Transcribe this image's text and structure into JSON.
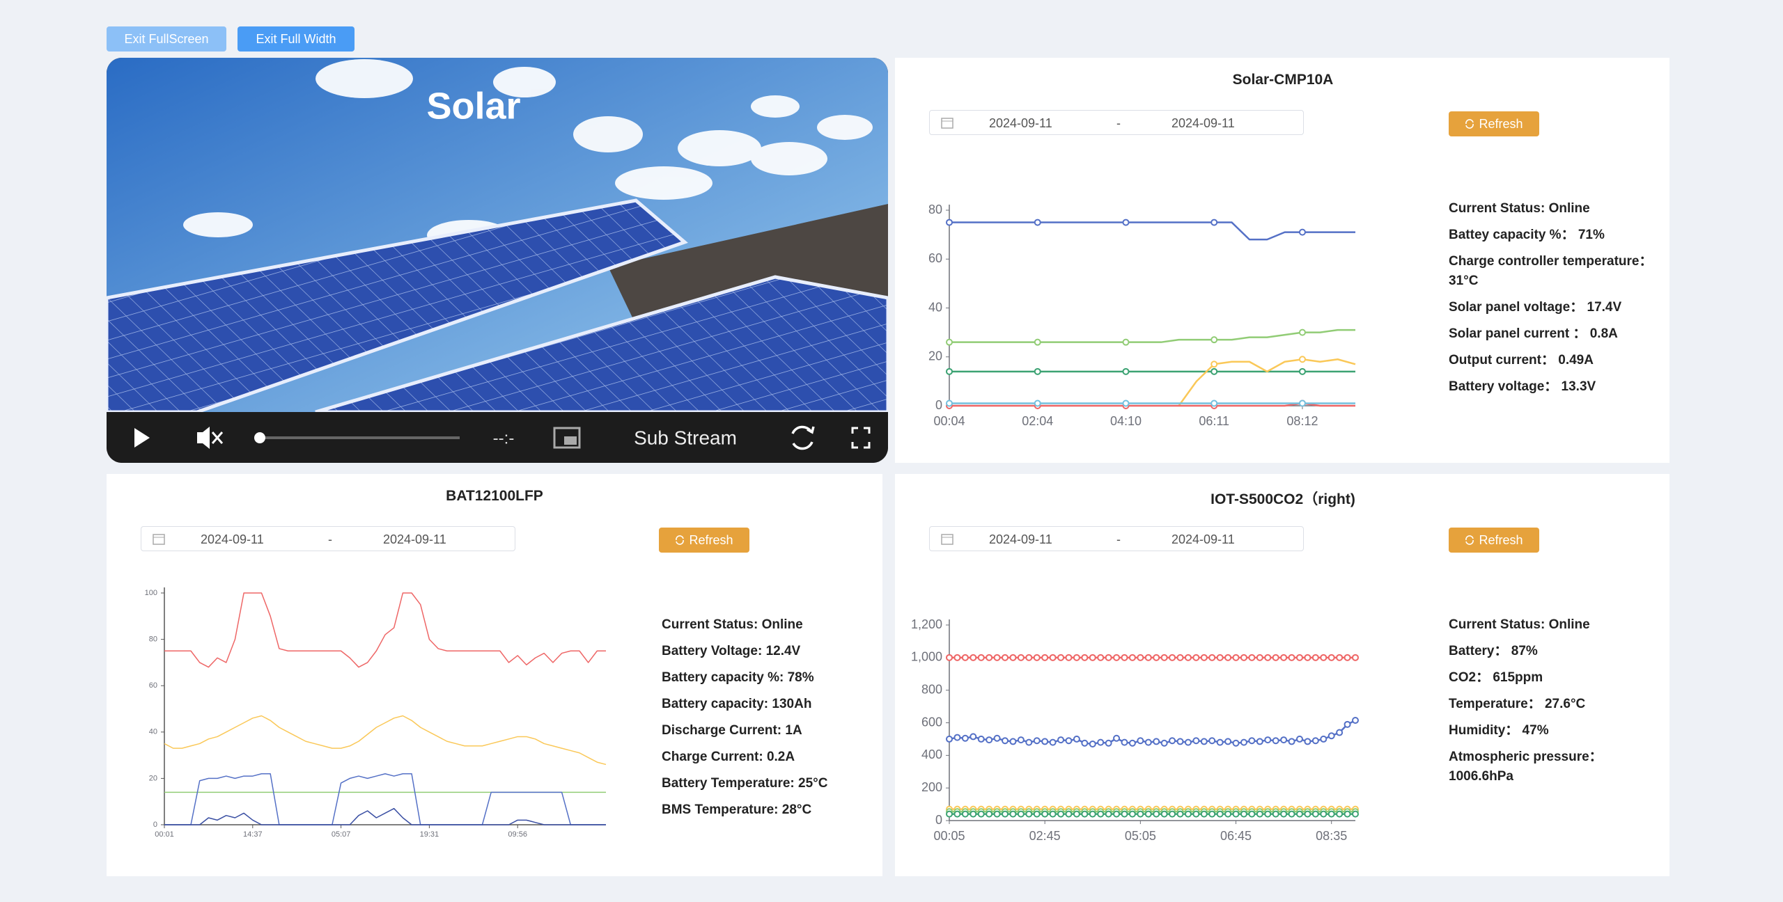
{
  "buttons": [
    "Exit FullScreen",
    "Exit Full Width"
  ],
  "video": {
    "title": "Solar",
    "time": "--:-",
    "stream": "Sub Stream"
  },
  "panels": [
    {
      "title": "Solar-CMP10A",
      "date": {
        "start": "2024-09-11",
        "separator": "-",
        "end": "2024-09-11"
      },
      "refresh": "Refresh",
      "info": [
        "Current Status: Online",
        "Battey capacity %： 71%",
        "Charge controller temperature：31°C",
        "Solar panel voltage： 17.4V",
        "Solar panel current ： 0.8A",
        "Output current： 0.49A",
        "Battery voltage： 13.3V"
      ],
      "chart": {
        "type": "line",
        "categories": [
          "00:04",
          null,
          null,
          null,
          null,
          "02:04",
          null,
          null,
          null,
          null,
          "04:10",
          null,
          null,
          null,
          null,
          "06:11",
          null,
          null,
          null,
          null,
          "08:12",
          null,
          null,
          null
        ],
        "ylim": [
          0,
          80
        ],
        "yticks": [
          0,
          20,
          40,
          60,
          80
        ],
        "symbol_every": 5,
        "series": [
          {
            "color": "#5470c6",
            "values": [
              75,
              75,
              75,
              75,
              75,
              75,
              75,
              75,
              75,
              75,
              75,
              75,
              75,
              75,
              75,
              75,
              75,
              68,
              68,
              71,
              71,
              71,
              71,
              71
            ]
          },
          {
            "color": "#91cc75",
            "values": [
              26,
              26,
              26,
              26,
              26,
              26,
              26,
              26,
              26,
              26,
              26,
              26,
              26,
              27,
              27,
              27,
              27,
              28,
              28,
              29,
              30,
              30,
              31,
              31
            ]
          },
          {
            "color": "#3ba272",
            "values": [
              14,
              14,
              14,
              14,
              14,
              14,
              14,
              14,
              14,
              14,
              14,
              14,
              14,
              14,
              14,
              14,
              14,
              14,
              14,
              14,
              14,
              14,
              14,
              14
            ]
          },
          {
            "color": "#fac858",
            "values": [
              null,
              null,
              null,
              null,
              null,
              null,
              null,
              null,
              null,
              null,
              null,
              null,
              null,
              0,
              10,
              17,
              18,
              18,
              14,
              18,
              19,
              18,
              19,
              17
            ]
          },
          {
            "color": "#ee6666",
            "values": [
              0,
              0,
              0,
              0,
              0,
              0,
              0,
              0,
              0,
              0,
              0,
              0,
              0,
              0,
              0,
              0,
              0,
              0,
              0,
              0,
              1,
              0,
              0,
              0
            ]
          },
          {
            "color": "#73c0de",
            "values": [
              1,
              1,
              1,
              1,
              1,
              1,
              1,
              1,
              1,
              1,
              1,
              1,
              1,
              1,
              1,
              1,
              1,
              1,
              1,
              1,
              1,
              1,
              1,
              1
            ]
          }
        ]
      }
    },
    {
      "title": "BAT12100LFP",
      "date": {
        "start": "2024-09-11",
        "separator": "-",
        "end": "2024-09-11"
      },
      "refresh": "Refresh",
      "info": [
        "Current Status: Online",
        "Battery Voltage: 12.4V",
        "Battery capacity %: 78%",
        "Battery capacity: 130Ah",
        "Discharge Current: 1A",
        "Charge Current: 0.2A",
        "Battery Temperature: 25°C",
        "BMS Temperature: 28°C"
      ],
      "chart": {
        "type": "line",
        "categories": [
          "00:01",
          null,
          null,
          null,
          null,
          null,
          null,
          null,
          null,
          null,
          "14:37",
          null,
          null,
          null,
          null,
          null,
          null,
          null,
          null,
          null,
          "05:07",
          null,
          null,
          null,
          null,
          null,
          null,
          null,
          null,
          null,
          "19:31",
          null,
          null,
          null,
          null,
          null,
          null,
          null,
          null,
          null,
          "09:56",
          null,
          null,
          null,
          null,
          null,
          null,
          null,
          null,
          null,
          null
        ],
        "ylim": [
          0,
          100
        ],
        "yticks": [
          0,
          20,
          40,
          60,
          80,
          100
        ],
        "series": [
          {
            "color": "#ee6666",
            "values": [
              75,
              75,
              75,
              75,
              70,
              68,
              72,
              70,
              80,
              100,
              100,
              100,
              90,
              76,
              75,
              75,
              75,
              75,
              75,
              75,
              75,
              72,
              68,
              70,
              75,
              82,
              85,
              100,
              100,
              95,
              80,
              76,
              75,
              75,
              75,
              75,
              75,
              75,
              75,
              70,
              73,
              69,
              72,
              74,
              70,
              74,
              75,
              75,
              70,
              75,
              75
            ]
          },
          {
            "color": "#fac858",
            "values": [
              35,
              33,
              33,
              34,
              35,
              37,
              38,
              40,
              42,
              44,
              46,
              47,
              45,
              42,
              40,
              38,
              36,
              35,
              34,
              33,
              33,
              34,
              36,
              39,
              42,
              44,
              46,
              47,
              45,
              42,
              40,
              38,
              36,
              35,
              34,
              34,
              34,
              35,
              36,
              37,
              38,
              38,
              37,
              35,
              34,
              33,
              32,
              31,
              29,
              27,
              26
            ]
          },
          {
            "color": "#91cc75",
            "values": [
              14,
              14,
              14,
              14,
              14,
              14,
              14,
              14,
              14,
              14,
              14,
              14,
              14,
              14,
              14,
              14,
              14,
              14,
              14,
              14,
              14,
              14,
              14,
              14,
              14,
              14,
              14,
              14,
              14,
              14,
              14,
              14,
              14,
              14,
              14,
              14,
              14,
              14,
              14,
              14,
              14,
              14,
              14,
              14,
              14,
              14,
              14,
              14,
              14,
              14,
              14
            ]
          },
          {
            "color": "#5470c6",
            "values": [
              0,
              0,
              0,
              0,
              19,
              20,
              20,
              21,
              20,
              21,
              21,
              22,
              22,
              0,
              0,
              0,
              0,
              0,
              0,
              0,
              18,
              20,
              21,
              20,
              21,
              22,
              21,
              22,
              22,
              0,
              0,
              0,
              0,
              0,
              0,
              0,
              0,
              14,
              14,
              14,
              14,
              14,
              14,
              14,
              14,
              14,
              0,
              0,
              0,
              0,
              0
            ]
          },
          {
            "color": "#3a4fa3",
            "values": [
              0,
              0,
              0,
              0,
              0,
              3,
              2,
              4,
              3,
              5,
              2,
              0,
              0,
              0,
              0,
              0,
              0,
              0,
              0,
              0,
              0,
              0,
              4,
              6,
              3,
              5,
              7,
              3,
              0,
              0,
              0,
              0,
              0,
              0,
              0,
              0,
              0,
              0,
              0,
              0,
              2,
              2,
              1,
              0,
              0,
              0,
              0,
              0,
              0,
              0,
              0
            ]
          }
        ]
      }
    },
    {
      "title": "IOT-S500CO2（right)",
      "date": {
        "start": "2024-09-11",
        "separator": "-",
        "end": "2024-09-11"
      },
      "refresh": "Refresh",
      "info": [
        "Current Status: Online",
        "Battery： 87%",
        "CO2： 615ppm",
        "Temperature： 27.6°C",
        "Humidity： 47%",
        "Atmospheric pressure：1006.6hPa"
      ],
      "chart": {
        "type": "line",
        "categories": [
          "00:05",
          null,
          null,
          null,
          null,
          null,
          null,
          null,
          null,
          null,
          null,
          null,
          "02:45",
          null,
          null,
          null,
          null,
          null,
          null,
          null,
          null,
          null,
          null,
          null,
          "05:05",
          null,
          null,
          null,
          null,
          null,
          null,
          null,
          null,
          null,
          null,
          null,
          "06:45",
          null,
          null,
          null,
          null,
          null,
          null,
          null,
          null,
          null,
          null,
          null,
          "08:35",
          null,
          null,
          null
        ],
        "ylim": [
          0,
          1200
        ],
        "yticks": [
          0,
          200,
          400,
          600,
          800,
          {
            "value": 1000,
            "label": "1,000"
          },
          {
            "value": 1200,
            "label": "1,200"
          }
        ],
        "symbol_every": 1,
        "series": [
          {
            "color": "#ee6666",
            "values": [
              1000,
              1000,
              1000,
              1000,
              1000,
              1000,
              1000,
              1000,
              1000,
              1000,
              1000,
              1000,
              1000,
              1000,
              1000,
              1000,
              1000,
              1000,
              1000,
              1000,
              1000,
              1000,
              1000,
              1000,
              1000,
              1000,
              1000,
              1000,
              1000,
              1000,
              1000,
              1000,
              1000,
              1000,
              1000,
              1000,
              1000,
              1000,
              1000,
              1000,
              1000,
              1000,
              1000,
              1000,
              1000,
              1000,
              1000,
              1000,
              1000,
              1000,
              1000,
              1000
            ]
          },
          {
            "color": "#5470c6",
            "values": [
              500,
              510,
              505,
              515,
              500,
              495,
              505,
              490,
              485,
              495,
              480,
              490,
              485,
              480,
              495,
              490,
              500,
              475,
              470,
              480,
              475,
              505,
              480,
              475,
              490,
              480,
              485,
              475,
              490,
              485,
              480,
              490,
              485,
              490,
              480,
              485,
              475,
              480,
              490,
              485,
              495,
              490,
              495,
              485,
              500,
              485,
              490,
              500,
              520,
              540,
              590,
              615
            ]
          },
          {
            "color": "#fac858",
            "values": [
              70,
              70,
              70,
              70,
              70,
              70,
              70,
              70,
              70,
              70,
              70,
              70,
              70,
              70,
              70,
              70,
              70,
              70,
              70,
              70,
              70,
              70,
              70,
              70,
              70,
              70,
              70,
              70,
              70,
              70,
              70,
              70,
              70,
              70,
              70,
              70,
              70,
              70,
              70,
              70,
              70,
              70,
              70,
              70,
              70,
              70,
              70,
              70,
              70,
              70,
              70,
              70
            ]
          },
          {
            "color": "#91cc75",
            "values": [
              55,
              55,
              55,
              55,
              55,
              55,
              55,
              55,
              55,
              55,
              55,
              55,
              55,
              55,
              55,
              55,
              55,
              55,
              55,
              55,
              55,
              55,
              55,
              55,
              55,
              55,
              55,
              55,
              55,
              55,
              55,
              55,
              55,
              55,
              55,
              55,
              55,
              55,
              55,
              55,
              55,
              55,
              55,
              55,
              55,
              55,
              55,
              55,
              55,
              55,
              55,
              55
            ]
          },
          {
            "color": "#3ba272",
            "values": [
              40,
              40,
              40,
              40,
              40,
              40,
              40,
              40,
              40,
              40,
              40,
              40,
              40,
              40,
              40,
              40,
              40,
              40,
              40,
              40,
              40,
              40,
              40,
              40,
              40,
              40,
              40,
              40,
              40,
              40,
              40,
              40,
              40,
              40,
              40,
              40,
              40,
              40,
              40,
              40,
              40,
              40,
              40,
              40,
              40,
              40,
              40,
              40,
              40,
              40,
              40,
              40
            ]
          }
        ]
      }
    }
  ]
}
